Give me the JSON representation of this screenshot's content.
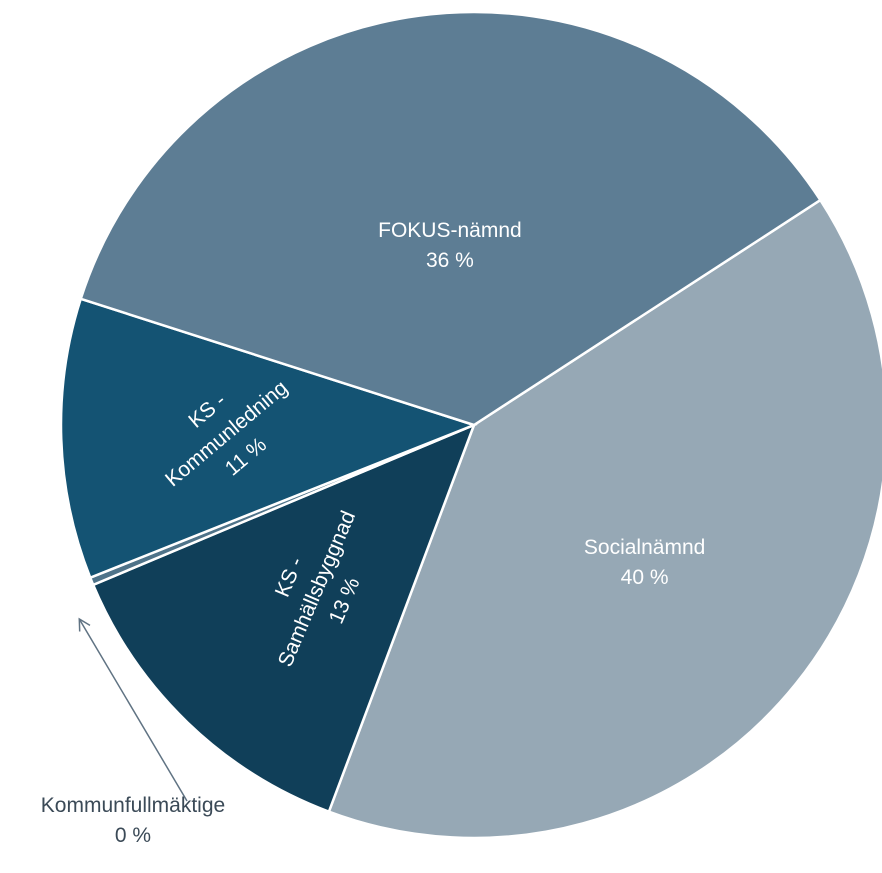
{
  "chart_data": {
    "type": "pie",
    "title": "",
    "colors": {
      "Socialnämnd": "#96a8b5",
      "KS - Samhällsbyggnad": "#103f59",
      "Kommunfullmäktige": "#4f7389",
      "KS - Kommunledning": "#145373",
      "FOKUS-nämnd": "#5d7d94",
      "arrow": "#607383",
      "outside_label": "#3b4a57"
    },
    "slices": [
      {
        "label": "Socialnämnd",
        "value": 40,
        "value_label": "40 %"
      },
      {
        "label": "KS - Samhällsbyggnad",
        "value": 13,
        "value_label": "13 %"
      },
      {
        "label": "Kommunfullmäktige",
        "value": 0.3,
        "value_label": "0 %"
      },
      {
        "label": "KS - Kommunledning",
        "value": 11,
        "value_label": "11 %"
      },
      {
        "label": "FOKUS-nämnd",
        "value": 36,
        "value_label": "36 %"
      }
    ]
  }
}
